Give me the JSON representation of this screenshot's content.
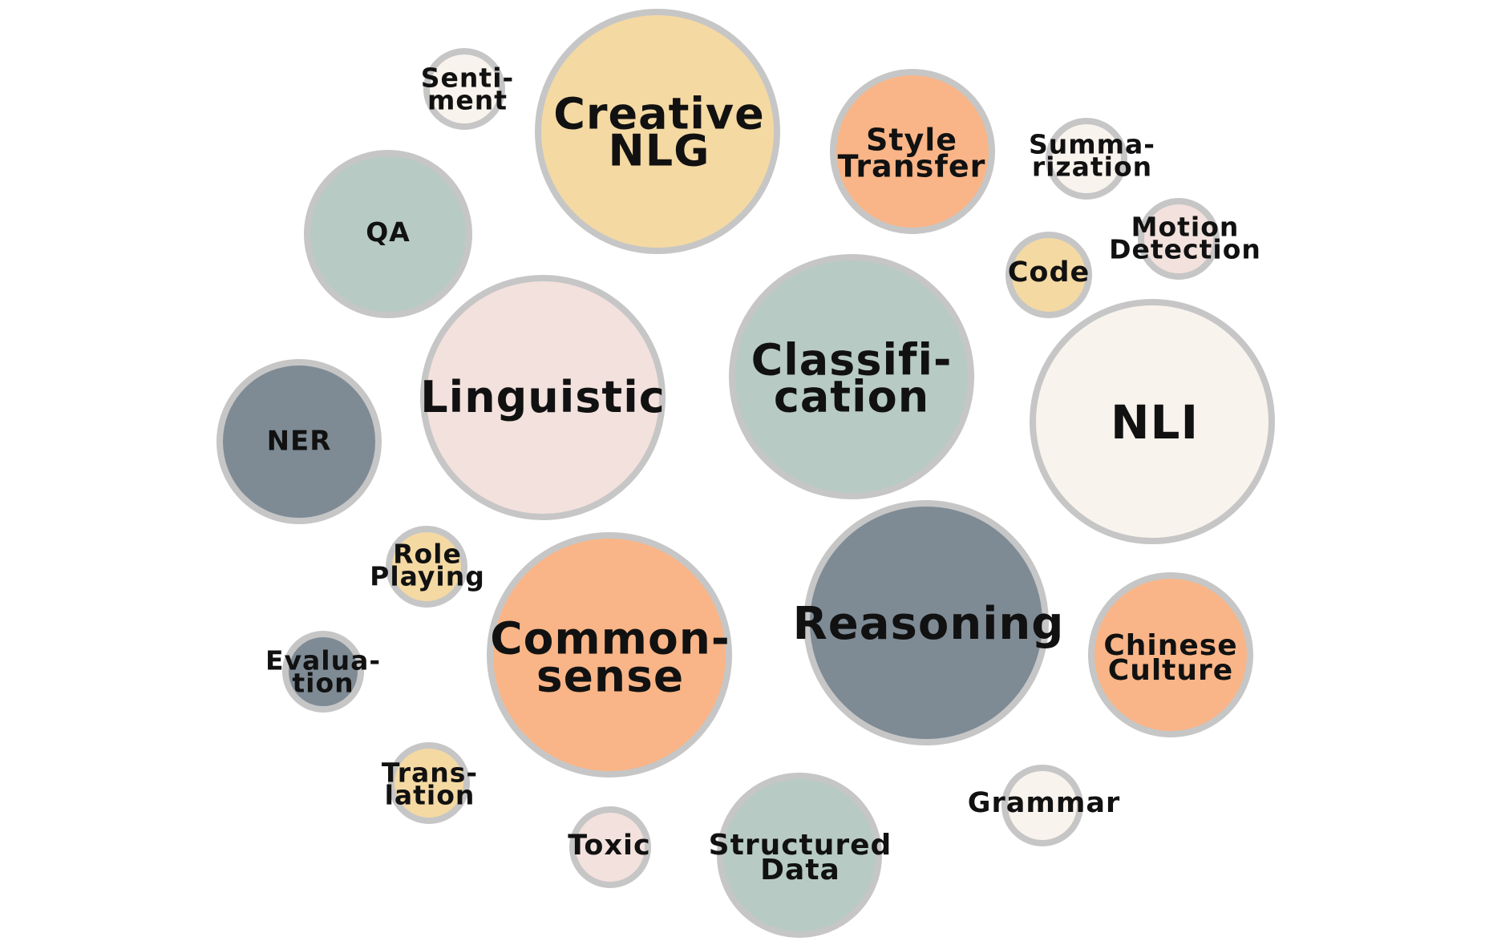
{
  "colors": {
    "background": "#ffffff",
    "outline": "#c6c6c6",
    "text": "#111111",
    "sage": "#b7cac4",
    "slate": "#7e8b95",
    "pink": "#f3e1dd",
    "cream": "#f8f3ec",
    "yellow": "#f4d9a3",
    "orange": "#f9b587"
  },
  "bubbles": [
    {
      "id": "creative-nlg",
      "label": "Creative\nNLG",
      "color": "yellow"
    },
    {
      "id": "sentiment",
      "label": "Senti-\nment",
      "color": "cream"
    },
    {
      "id": "style-transfer",
      "label": "Style\nTransfer",
      "color": "orange"
    },
    {
      "id": "summarization",
      "label": "Summa-\nrization",
      "color": "cream"
    },
    {
      "id": "qa",
      "label": "QA",
      "color": "sage"
    },
    {
      "id": "motion-detection",
      "label": "Motion\nDetection",
      "color": "pink"
    },
    {
      "id": "code",
      "label": "Code",
      "color": "yellow"
    },
    {
      "id": "linguistic",
      "label": "Linguistic",
      "color": "pink"
    },
    {
      "id": "classification",
      "label": "Classifi-\ncation",
      "color": "sage"
    },
    {
      "id": "nli",
      "label": "NLI",
      "color": "cream"
    },
    {
      "id": "ner",
      "label": "NER",
      "color": "slate"
    },
    {
      "id": "role-playing",
      "label": "Role\nPlaying",
      "color": "yellow"
    },
    {
      "id": "commonsense",
      "label": "Common-\nsense",
      "color": "orange"
    },
    {
      "id": "reasoning",
      "label": "Reasoning",
      "color": "slate"
    },
    {
      "id": "chinese-culture",
      "label": "Chinese\nCulture",
      "color": "orange"
    },
    {
      "id": "evaluation",
      "label": "Evalua-\ntion",
      "color": "slate"
    },
    {
      "id": "translation",
      "label": "Trans-\nlation",
      "color": "yellow"
    },
    {
      "id": "grammar",
      "label": "Grammar",
      "color": "cream"
    },
    {
      "id": "toxic",
      "label": "Toxic",
      "color": "pink"
    },
    {
      "id": "structured-data",
      "label": "Structured\nData",
      "color": "sage"
    }
  ]
}
